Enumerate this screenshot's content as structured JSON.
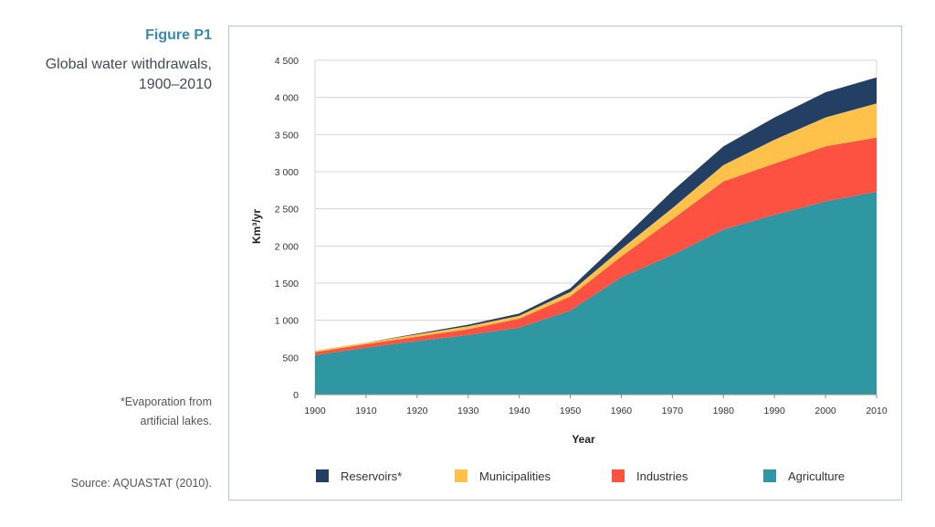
{
  "figure": {
    "label": "Figure P1",
    "title_line1": "Global water withdrawals,",
    "title_line2": "1900–2010",
    "note_line1": "*Evaporation from",
    "note_line2": "artificial lakes.",
    "source": "Source: AQUASTAT (2010)."
  },
  "chart_data": {
    "type": "area",
    "stacked": true,
    "xlabel": "Year",
    "ylabel": "Km³/yr",
    "x": [
      1900,
      1910,
      1920,
      1930,
      1940,
      1950,
      1960,
      1970,
      1980,
      1990,
      2000,
      2010
    ],
    "x_ticks": [
      "1900",
      "1910",
      "1920",
      "1930",
      "1940",
      "1950",
      "1960",
      "1970",
      "1980",
      "1990",
      "2000",
      "2010"
    ],
    "y_ticks": [
      "0",
      "500",
      "1 000",
      "1 500",
      "2 000",
      "2 500",
      "3 000",
      "3 500",
      "4 000",
      "4 500"
    ],
    "y_tick_values": [
      0,
      500,
      1000,
      1500,
      2000,
      2500,
      3000,
      3500,
      4000,
      4500
    ],
    "ylim": [
      0,
      4500
    ],
    "grid": "horizontal",
    "legend_position": "bottom",
    "series": [
      {
        "name": "Agriculture",
        "color": "#2e97a2",
        "values": [
          530,
          630,
          720,
          800,
          900,
          1130,
          1580,
          1880,
          2220,
          2420,
          2600,
          2730
        ]
      },
      {
        "name": "Industries",
        "color": "#fd5142",
        "values": [
          40,
          50,
          60,
          80,
          120,
          190,
          280,
          480,
          650,
          690,
          740,
          730
        ]
      },
      {
        "name": "Municipalities",
        "color": "#fec24a",
        "values": [
          20,
          20,
          30,
          40,
          40,
          60,
          100,
          150,
          220,
          320,
          390,
          460
        ]
      },
      {
        "name": "Reservoirs*",
        "color": "#233f64",
        "values": [
          0,
          0,
          10,
          20,
          30,
          50,
          120,
          230,
          250,
          300,
          340,
          350
        ]
      }
    ],
    "legend_order": [
      "Reservoirs*",
      "Municipalities",
      "Industries",
      "Agriculture"
    ]
  }
}
